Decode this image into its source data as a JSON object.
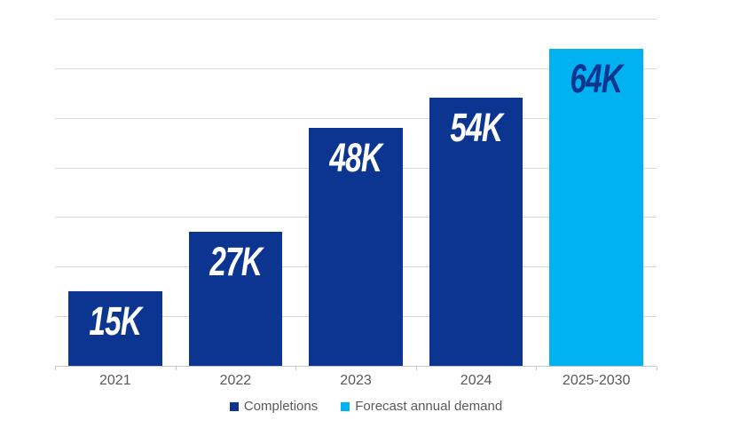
{
  "colors": {
    "completions_bar": "#0b3591",
    "forecast_bar": "#00b3f0",
    "gridline": "#d9d9d9",
    "axis_line": "#c8c8c8",
    "axis_text": "#595959",
    "legend_text": "#595959",
    "value_label_on_dark": "#ffffff",
    "value_label_on_light": "#0b3591",
    "background": "#ffffff"
  },
  "chart_data": {
    "type": "bar",
    "title": "",
    "xlabel": "",
    "ylabel": "",
    "categories": [
      "2021",
      "2022",
      "2023",
      "2024",
      "2025-2030"
    ],
    "values": [
      15,
      27,
      48,
      54,
      64
    ],
    "data_labels": [
      "15K",
      "27K",
      "48K",
      "54K",
      "64K"
    ],
    "series_of_bar": [
      "Completions",
      "Completions",
      "Completions",
      "Completions",
      "Forecast annual demand"
    ],
    "legend": [
      {
        "label": "Completions",
        "color": "#0b3591"
      },
      {
        "label": "Forecast annual demand",
        "color": "#00b3f0"
      }
    ],
    "legend_position": "bottom",
    "grid": true,
    "gridline_step": 10,
    "ylim": [
      0,
      70
    ],
    "y_axis_labels_visible": false
  }
}
